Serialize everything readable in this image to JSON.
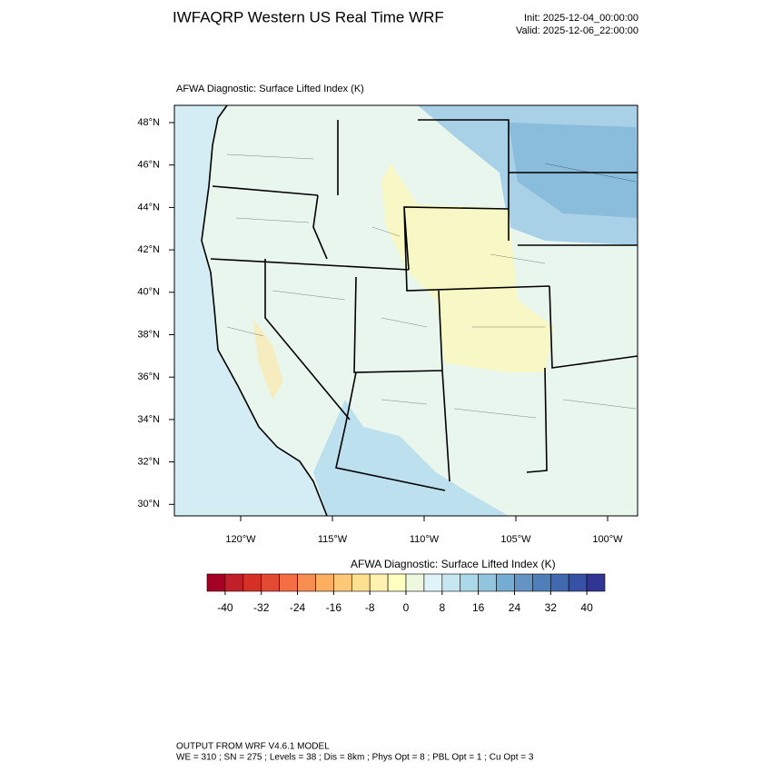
{
  "header": {
    "title": "IWFAQRP Western US Real Time WRF",
    "init": "Init: 2025-12-04_00:00:00",
    "valid": "Valid: 2025-12-06_22:00:00"
  },
  "map": {
    "title": "AFWA Diagnostic: Surface Lifted Index   (K)",
    "lat_labels": [
      "48°N",
      "46°N",
      "44°N",
      "42°N",
      "40°N",
      "38°N",
      "36°N",
      "34°N",
      "32°N",
      "30°N"
    ],
    "lon_labels": [
      "120°W",
      "115°W",
      "110°W",
      "105°W",
      "100°W"
    ]
  },
  "colorbar": {
    "title": "AFWA Diagnostic: Surface Lifted Index  (K)",
    "ticks": [
      -40,
      -32,
      -24,
      -16,
      -8,
      0,
      8,
      16,
      24,
      32,
      40
    ],
    "colors": [
      "#a50026",
      "#c1202a",
      "#d73027",
      "#e34a33",
      "#f46d43",
      "#f88d52",
      "#fdae61",
      "#fdc878",
      "#fee090",
      "#fff2ae",
      "#ffffbf",
      "#eef8e0",
      "#e0f3f8",
      "#c6e6f1",
      "#abd9e9",
      "#92c5de",
      "#74add1",
      "#6593c4",
      "#4f7fb9",
      "#4169b0",
      "#3651a5",
      "#313695"
    ]
  },
  "footer": {
    "line1": "OUTPUT FROM WRF V4.6.1 MODEL",
    "line2": "WE = 310 ; SN = 275 ; Levels = 38 ; Dis = 8km ; Phys Opt = 8 ; PBL Opt = 1 ; Cu Opt = 3"
  }
}
